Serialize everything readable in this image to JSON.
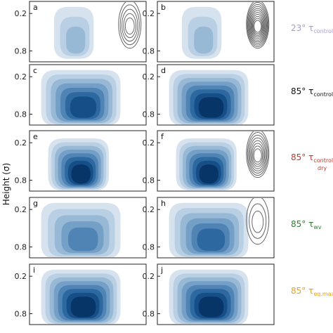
{
  "chart_data": {
    "type": "contour",
    "ylabel": "Height (σ)",
    "y_ticks": [
      "0.2",
      "0.8"
    ],
    "palette": [
      "#d6e3ef",
      "#b9cfe3",
      "#98b9d6",
      "#749fc6",
      "#4f84b4",
      "#2d68a0",
      "#164f88",
      "#083567",
      "#03183a"
    ],
    "rows": [
      {
        "label_main": "23° ",
        "label_tau": "τ",
        "label_sub": "control",
        "label_sub2": "",
        "color": "#a99bd4",
        "panels": [
          {
            "letter": "a",
            "peak": 0.3,
            "shape": "narrow",
            "line_contours": 5
          },
          {
            "letter": "b",
            "peak": 0.35,
            "shape": "narrow",
            "line_contours": 11
          }
        ]
      },
      {
        "label_main": "85° ",
        "label_tau": "τ",
        "label_sub": "control",
        "label_sub2": "",
        "color": "#111111",
        "panels": [
          {
            "letter": "c",
            "peak": 0.75,
            "shape": "wide",
            "line_contours": 0
          },
          {
            "letter": "d",
            "peak": 0.85,
            "shape": "wide",
            "line_contours": 0
          }
        ]
      },
      {
        "label_main": "85° ",
        "label_tau": "τ",
        "label_sub": "control",
        "label_sub2": "dry",
        "color": "#c0392b",
        "panels": [
          {
            "letter": "e",
            "peak": 0.85,
            "shape": "medium",
            "line_contours": 0
          },
          {
            "letter": "f",
            "peak": 0.9,
            "shape": "medium",
            "line_contours": 8
          }
        ]
      },
      {
        "label_main": "85° ",
        "label_tau": "τ",
        "label_sub": "wv",
        "label_sub2": "",
        "color": "#2e7d32",
        "panels": [
          {
            "letter": "g",
            "peak": 0.6,
            "shape": "wide",
            "line_contours": 0
          },
          {
            "letter": "h",
            "peak": 0.65,
            "shape": "wide",
            "line_contours": 3
          }
        ]
      },
      {
        "label_main": "85° ",
        "label_tau": "τ",
        "label_sub": "eq.max",
        "label_sub2": "",
        "color": "#e6a117",
        "panels": [
          {
            "letter": "i",
            "peak": 0.85,
            "shape": "wide",
            "line_contours": 0
          },
          {
            "letter": "j",
            "peak": 0.92,
            "shape": "wide",
            "line_contours": 0
          }
        ]
      }
    ]
  }
}
